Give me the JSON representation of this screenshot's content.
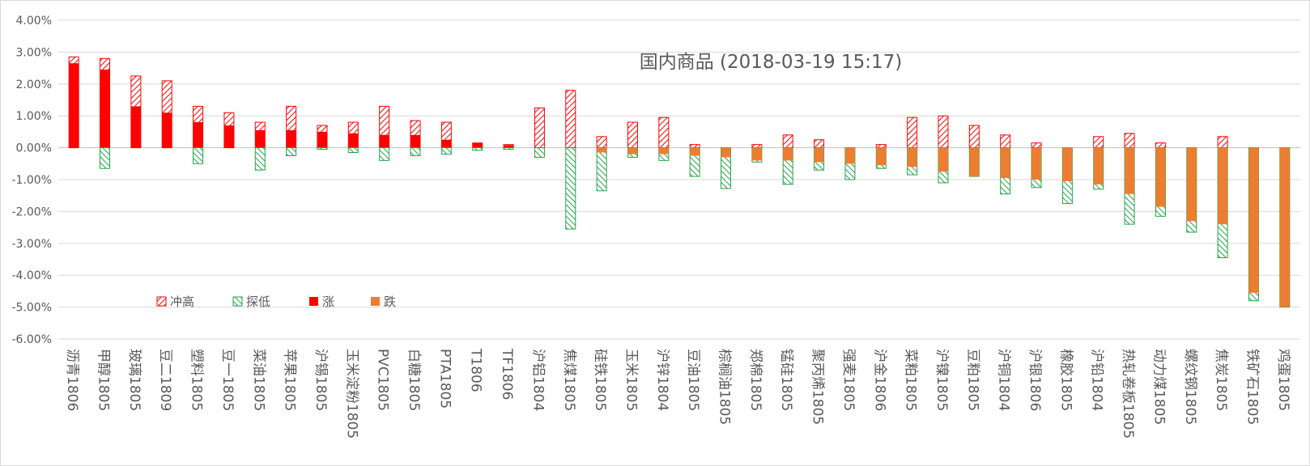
{
  "chart_data": {
    "type": "bar",
    "title": "国内商品 (2018-03-19 15:17)",
    "ylim": [
      -6,
      4
    ],
    "yticks": [
      "4.00%",
      "3.00%",
      "2.00%",
      "1.00%",
      "0.00%",
      "-1.00%",
      "-2.00%",
      "-3.00%",
      "-4.00%",
      "-5.00%",
      "-6.00%"
    ],
    "grid": true,
    "legend_position": "bottom-left",
    "legend": [
      {
        "key": "high",
        "label": "冲高"
      },
      {
        "key": "low",
        "label": "探低"
      },
      {
        "key": "up",
        "label": "涨"
      },
      {
        "key": "down",
        "label": "跌"
      }
    ],
    "colors": {
      "high": "#ff0000",
      "low": "#21a546",
      "up": "#ff0000",
      "down": "#ed7d31",
      "grid": "#d9d9d9",
      "text": "#595959"
    },
    "categories": [
      "沥青1806",
      "甲醇1805",
      "玻璃1805",
      "豆二1809",
      "塑料1805",
      "豆一1805",
      "菜油1805",
      "苹果1805",
      "沪锡1805",
      "玉米淀粉1805",
      "PVC1805",
      "白糖1805",
      "PTA1805",
      "T1806",
      "TF1806",
      "沪铝1804",
      "焦煤1805",
      "硅铁1805",
      "玉米1805",
      "沪锌1804",
      "豆油1805",
      "棕榈油1805",
      "郑棉1805",
      "锰硅1805",
      "聚丙烯1805",
      "强麦1805",
      "沪金1806",
      "菜粕1805",
      "沪镍1805",
      "豆粕1805",
      "沪铜1804",
      "沪银1806",
      "橡胶1805",
      "沪铅1804",
      "热轧卷板1805",
      "动力煤1805",
      "螺纹钢1805",
      "焦炭1805",
      "铁矿石1805",
      "鸡蛋1805"
    ],
    "series": [
      {
        "name": "冲高",
        "key": "high",
        "values": [
          2.85,
          2.8,
          2.25,
          2.1,
          1.3,
          1.1,
          0.8,
          1.3,
          0.7,
          0.8,
          1.3,
          0.85,
          0.8,
          0.15,
          0.1,
          1.25,
          1.8,
          0.35,
          0.8,
          0.95,
          0.1,
          0.0,
          0.1,
          0.4,
          0.25,
          0.0,
          0.1,
          0.95,
          1.0,
          0.7,
          0.4,
          0.15,
          0.0,
          0.35,
          0.45,
          0.15,
          0.0,
          0.35,
          0.0,
          0.0
        ]
      },
      {
        "name": "探低",
        "key": "low",
        "values": [
          0.0,
          -0.65,
          0.0,
          0.0,
          -0.5,
          0.0,
          -0.7,
          -0.25,
          -0.05,
          -0.15,
          -0.4,
          -0.25,
          -0.2,
          -0.08,
          -0.05,
          -0.3,
          -2.55,
          -1.35,
          -0.3,
          -0.4,
          -0.9,
          -1.28,
          -0.45,
          -1.15,
          -0.7,
          -1.0,
          -0.65,
          -0.85,
          -1.1,
          -0.9,
          -1.45,
          -1.25,
          -1.75,
          -1.3,
          -2.4,
          -2.15,
          -2.65,
          -3.45,
          -4.8,
          -5.0
        ]
      },
      {
        "name": "涨",
        "key": "up",
        "values": [
          2.65,
          2.45,
          1.3,
          1.1,
          0.8,
          0.7,
          0.55,
          0.55,
          0.5,
          0.45,
          0.4,
          0.4,
          0.25,
          0.15,
          0.08,
          0.0,
          0.0,
          0.0,
          0.0,
          0.0,
          0.0,
          0.0,
          0.0,
          0.0,
          0.0,
          0.0,
          0.0,
          0.0,
          0.0,
          0.0,
          0.0,
          0.0,
          0.0,
          0.0,
          0.0,
          0.0,
          0.0,
          0.0,
          0.0,
          0.0
        ]
      },
      {
        "name": "跌",
        "key": "down",
        "values": [
          0.0,
          0.0,
          0.0,
          0.0,
          0.0,
          0.0,
          0.0,
          0.0,
          0.0,
          0.0,
          0.0,
          0.0,
          0.0,
          0.0,
          0.0,
          0.0,
          0.0,
          -0.15,
          -0.2,
          -0.2,
          -0.25,
          -0.3,
          -0.4,
          -0.4,
          -0.45,
          -0.5,
          -0.55,
          -0.6,
          -0.75,
          -0.9,
          -0.95,
          -1.0,
          -1.05,
          -1.15,
          -1.45,
          -1.85,
          -2.3,
          -2.4,
          -4.55,
          -5.0
        ]
      }
    ]
  }
}
